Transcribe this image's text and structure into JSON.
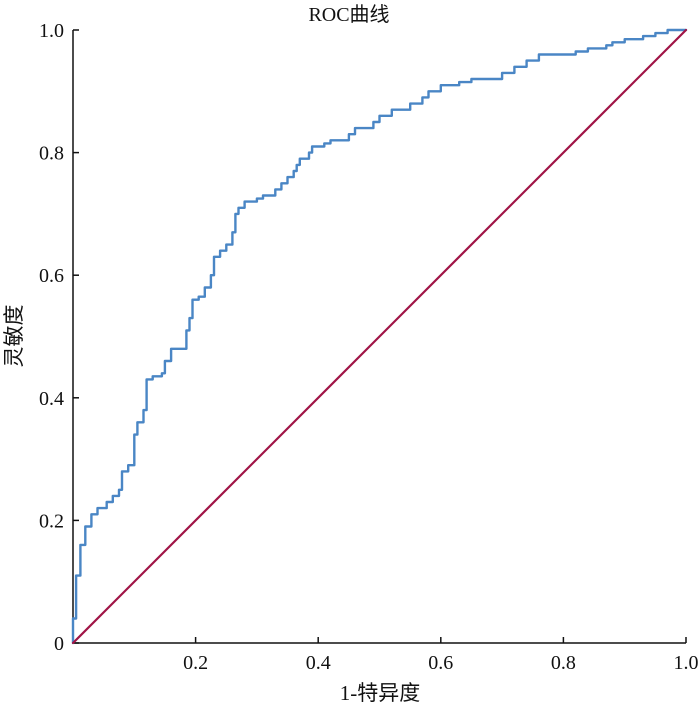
{
  "chart_data": {
    "type": "line",
    "title": "ROC曲线",
    "xlabel": "1-特异度",
    "ylabel": "灵敏度",
    "xlim": [
      0,
      1
    ],
    "ylim": [
      0,
      1
    ],
    "x_ticks": [
      0.2,
      0.4,
      0.6,
      0.8,
      1.0
    ],
    "x_tick_labels": [
      "0.2",
      "0.4",
      "0.6",
      "0.8",
      "1.0"
    ],
    "y_ticks": [
      0,
      0.2,
      0.4,
      0.6,
      0.8,
      1.0
    ],
    "y_tick_labels": [
      "0",
      "0.2",
      "0.4",
      "0.6",
      "0.8",
      "1.0"
    ],
    "grid": false,
    "legend": "none",
    "series": [
      {
        "kind": "roc",
        "color": "#4a86c5",
        "points": [
          [
            0.0,
            0.0
          ],
          [
            0.0,
            0.04
          ],
          [
            0.005,
            0.04
          ],
          [
            0.005,
            0.11
          ],
          [
            0.012,
            0.11
          ],
          [
            0.012,
            0.16
          ],
          [
            0.02,
            0.16
          ],
          [
            0.02,
            0.19
          ],
          [
            0.03,
            0.19
          ],
          [
            0.03,
            0.21
          ],
          [
            0.04,
            0.21
          ],
          [
            0.04,
            0.22
          ],
          [
            0.055,
            0.22
          ],
          [
            0.055,
            0.23
          ],
          [
            0.065,
            0.23
          ],
          [
            0.065,
            0.24
          ],
          [
            0.075,
            0.24
          ],
          [
            0.075,
            0.25
          ],
          [
            0.08,
            0.25
          ],
          [
            0.08,
            0.28
          ],
          [
            0.09,
            0.28
          ],
          [
            0.09,
            0.29
          ],
          [
            0.1,
            0.29
          ],
          [
            0.1,
            0.34
          ],
          [
            0.105,
            0.34
          ],
          [
            0.105,
            0.36
          ],
          [
            0.115,
            0.36
          ],
          [
            0.115,
            0.38
          ],
          [
            0.12,
            0.38
          ],
          [
            0.12,
            0.43
          ],
          [
            0.13,
            0.43
          ],
          [
            0.13,
            0.435
          ],
          [
            0.145,
            0.435
          ],
          [
            0.145,
            0.44
          ],
          [
            0.15,
            0.44
          ],
          [
            0.15,
            0.46
          ],
          [
            0.16,
            0.46
          ],
          [
            0.16,
            0.48
          ],
          [
            0.185,
            0.48
          ],
          [
            0.185,
            0.51
          ],
          [
            0.19,
            0.51
          ],
          [
            0.19,
            0.53
          ],
          [
            0.195,
            0.53
          ],
          [
            0.195,
            0.56
          ],
          [
            0.205,
            0.56
          ],
          [
            0.205,
            0.565
          ],
          [
            0.215,
            0.565
          ],
          [
            0.215,
            0.58
          ],
          [
            0.225,
            0.58
          ],
          [
            0.225,
            0.6
          ],
          [
            0.23,
            0.6
          ],
          [
            0.23,
            0.63
          ],
          [
            0.24,
            0.63
          ],
          [
            0.24,
            0.64
          ],
          [
            0.25,
            0.64
          ],
          [
            0.25,
            0.65
          ],
          [
            0.26,
            0.65
          ],
          [
            0.26,
            0.67
          ],
          [
            0.265,
            0.67
          ],
          [
            0.265,
            0.7
          ],
          [
            0.27,
            0.7
          ],
          [
            0.27,
            0.71
          ],
          [
            0.28,
            0.71
          ],
          [
            0.28,
            0.72
          ],
          [
            0.3,
            0.72
          ],
          [
            0.3,
            0.725
          ],
          [
            0.31,
            0.725
          ],
          [
            0.31,
            0.73
          ],
          [
            0.33,
            0.73
          ],
          [
            0.33,
            0.74
          ],
          [
            0.34,
            0.74
          ],
          [
            0.34,
            0.75
          ],
          [
            0.35,
            0.75
          ],
          [
            0.35,
            0.76
          ],
          [
            0.36,
            0.76
          ],
          [
            0.36,
            0.77
          ],
          [
            0.365,
            0.77
          ],
          [
            0.365,
            0.78
          ],
          [
            0.37,
            0.78
          ],
          [
            0.37,
            0.79
          ],
          [
            0.385,
            0.79
          ],
          [
            0.385,
            0.8
          ],
          [
            0.39,
            0.8
          ],
          [
            0.39,
            0.81
          ],
          [
            0.41,
            0.81
          ],
          [
            0.41,
            0.815
          ],
          [
            0.42,
            0.815
          ],
          [
            0.42,
            0.82
          ],
          [
            0.45,
            0.82
          ],
          [
            0.45,
            0.83
          ],
          [
            0.46,
            0.83
          ],
          [
            0.46,
            0.84
          ],
          [
            0.49,
            0.84
          ],
          [
            0.49,
            0.85
          ],
          [
            0.5,
            0.85
          ],
          [
            0.5,
            0.86
          ],
          [
            0.52,
            0.86
          ],
          [
            0.52,
            0.87
          ],
          [
            0.55,
            0.87
          ],
          [
            0.55,
            0.88
          ],
          [
            0.57,
            0.88
          ],
          [
            0.57,
            0.89
          ],
          [
            0.58,
            0.89
          ],
          [
            0.58,
            0.9
          ],
          [
            0.6,
            0.9
          ],
          [
            0.6,
            0.91
          ],
          [
            0.63,
            0.91
          ],
          [
            0.63,
            0.915
          ],
          [
            0.65,
            0.915
          ],
          [
            0.65,
            0.92
          ],
          [
            0.7,
            0.92
          ],
          [
            0.7,
            0.93
          ],
          [
            0.72,
            0.93
          ],
          [
            0.72,
            0.94
          ],
          [
            0.74,
            0.94
          ],
          [
            0.74,
            0.95
          ],
          [
            0.76,
            0.95
          ],
          [
            0.76,
            0.96
          ],
          [
            0.82,
            0.96
          ],
          [
            0.82,
            0.965
          ],
          [
            0.84,
            0.965
          ],
          [
            0.84,
            0.97
          ],
          [
            0.87,
            0.97
          ],
          [
            0.87,
            0.975
          ],
          [
            0.88,
            0.975
          ],
          [
            0.88,
            0.98
          ],
          [
            0.9,
            0.98
          ],
          [
            0.9,
            0.985
          ],
          [
            0.93,
            0.985
          ],
          [
            0.93,
            0.99
          ],
          [
            0.95,
            0.99
          ],
          [
            0.95,
            0.995
          ],
          [
            0.97,
            0.995
          ],
          [
            0.97,
            1.0
          ],
          [
            1.0,
            1.0
          ]
        ]
      },
      {
        "kind": "reference",
        "color": "#a01446",
        "points": [
          [
            0,
            0
          ],
          [
            1,
            1
          ]
        ]
      }
    ]
  }
}
